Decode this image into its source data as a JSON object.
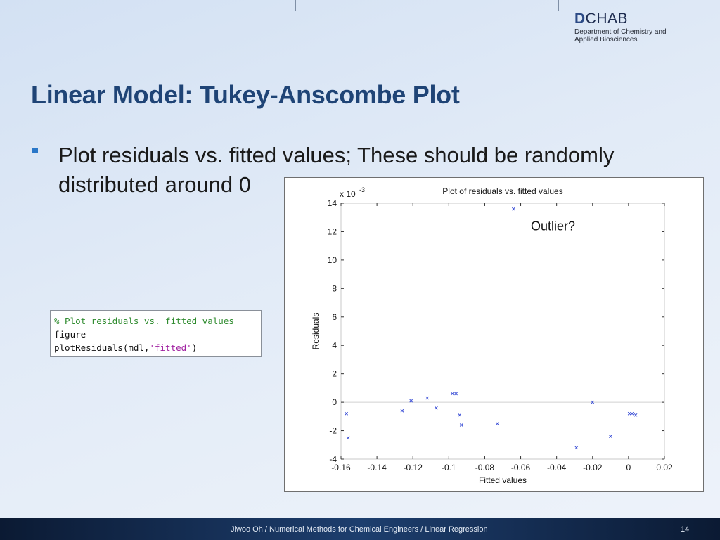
{
  "logo": {
    "main": "CHAB",
    "letter": "D",
    "line1": "Department of Chemistry and",
    "line2": "Applied Biosciences"
  },
  "slide": {
    "title": "Linear Model: Tukey-Anscombe Plot",
    "bullet": "Plot residuals vs. fitted values; These should be randomly distributed around 0"
  },
  "code": {
    "comment": "% Plot residuals vs. fitted values",
    "line2": "figure",
    "line3_fn": "plotResiduals(mdl,",
    "line3_str": "'fitted'",
    "line3_end": ")"
  },
  "footer": {
    "text": "Jiwoo Oh / Numerical Methods for Chemical Engineers / Linear Regression",
    "page": "14"
  },
  "chart_data": {
    "type": "scatter",
    "title": "Plot of residuals vs. fitted values",
    "xlabel": "Fitted values",
    "ylabel": "Residuals",
    "y_exponent_base": "x 10",
    "y_exponent_power": "-3",
    "xlim": [
      -0.16,
      0.02
    ],
    "ylim": [
      -4,
      14
    ],
    "xticks": [
      -0.16,
      -0.14,
      -0.12,
      -0.1,
      -0.08,
      -0.06,
      -0.04,
      -0.02,
      0,
      0.02
    ],
    "xtick_labels": [
      "-0.16",
      "-0.14",
      "-0.12",
      "-0.1",
      "-0.08",
      "-0.06",
      "-0.04",
      "-0.02",
      "0",
      "0.02"
    ],
    "yticks": [
      -4,
      -2,
      0,
      2,
      4,
      6,
      8,
      10,
      12,
      14
    ],
    "ytick_labels": [
      "-4",
      "-2",
      "0",
      "2",
      "4",
      "6",
      "8",
      "10",
      "12",
      "14"
    ],
    "zero_line": true,
    "marker": "x",
    "marker_color": "#3b4fd6",
    "points": [
      {
        "x": -0.157,
        "y": -0.8
      },
      {
        "x": -0.156,
        "y": -2.5
      },
      {
        "x": -0.126,
        "y": -0.6
      },
      {
        "x": -0.121,
        "y": 0.1
      },
      {
        "x": -0.112,
        "y": 0.3
      },
      {
        "x": -0.107,
        "y": -0.4
      },
      {
        "x": -0.098,
        "y": 0.6
      },
      {
        "x": -0.096,
        "y": 0.6
      },
      {
        "x": -0.094,
        "y": -0.9
      },
      {
        "x": -0.093,
        "y": -1.6
      },
      {
        "x": -0.073,
        "y": -1.5
      },
      {
        "x": -0.064,
        "y": 13.6
      },
      {
        "x": -0.029,
        "y": -3.2
      },
      {
        "x": -0.02,
        "y": 0.0
      },
      {
        "x": -0.01,
        "y": -2.4
      },
      {
        "x": 0.0005,
        "y": -0.8
      },
      {
        "x": 0.002,
        "y": -0.8
      },
      {
        "x": 0.004,
        "y": -0.9
      }
    ],
    "annotation": {
      "text": "Outlier?",
      "x": -0.042,
      "y": 12.1
    }
  }
}
